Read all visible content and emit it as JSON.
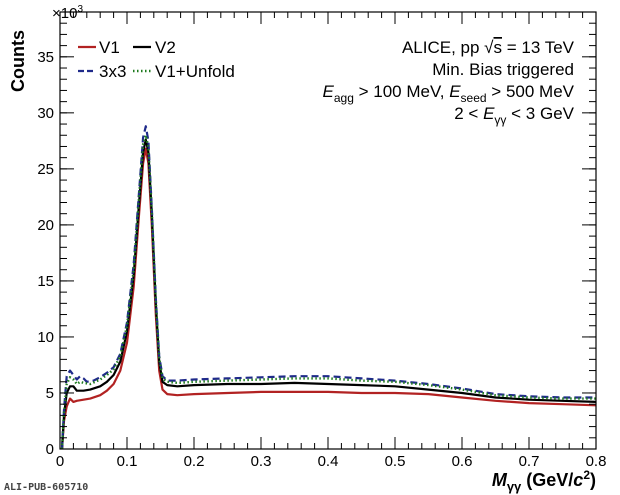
{
  "chart_data": {
    "type": "line",
    "title": "",
    "xlabel": "M_γγ (GeV/c²)",
    "xlabel_parts": {
      "symbol": "M",
      "sub": "γγ",
      "unit_open": " (GeV/",
      "c": "c",
      "power": "2",
      "unit_close": ")"
    },
    "ylabel": "Counts",
    "y_multiplier": "×10",
    "y_multiplier_exp": "3",
    "xlim": [
      0,
      0.8
    ],
    "ylim": [
      0,
      39
    ],
    "xticks": [
      "0",
      "0.1",
      "0.2",
      "0.3",
      "0.4",
      "0.5",
      "0.6",
      "0.7",
      "0.8"
    ],
    "yticks": [
      "0",
      "5",
      "10",
      "15",
      "20",
      "25",
      "30",
      "35"
    ],
    "grid": false,
    "legend_position": "top-left",
    "legend": [
      {
        "label": "V1",
        "style": "solid",
        "color": "#b22222"
      },
      {
        "label": "V2",
        "style": "solid",
        "color": "#000000"
      },
      {
        "label": "3x3",
        "style": "dashed",
        "color": "#1f2a8a"
      },
      {
        "label": "V1+Unfold",
        "style": "dotted",
        "color": "#1e7a1e"
      }
    ],
    "annotations": {
      "line1_prefix": "ALICE, pp  ",
      "line1_sqrt": "√",
      "line1_s": "s",
      "line1_suffix": " = 13 TeV",
      "line2": "Min. Bias triggered",
      "line3_e1": "E",
      "line3_sub1": "agg",
      "line3_mid": " > 100 MeV, ",
      "line3_e2": "E",
      "line3_sub2": "seed",
      "line3_end": " > 500 MeV",
      "line4_pre": "2 < ",
      "line4_e": "E",
      "line4_sub": "γγ",
      "line4_post": " < 3 GeV"
    },
    "series": [
      {
        "name": "V1",
        "color": "#b22222",
        "dash": "",
        "width": 2.2,
        "points": [
          [
            0.003,
            0
          ],
          [
            0.006,
            2.5
          ],
          [
            0.01,
            3.8
          ],
          [
            0.015,
            4.5
          ],
          [
            0.02,
            4.2
          ],
          [
            0.025,
            4.3
          ],
          [
            0.035,
            4.4
          ],
          [
            0.045,
            4.5
          ],
          [
            0.06,
            4.8
          ],
          [
            0.07,
            5.2
          ],
          [
            0.08,
            5.8
          ],
          [
            0.09,
            7.0
          ],
          [
            0.1,
            9.5
          ],
          [
            0.11,
            14.5
          ],
          [
            0.118,
            21
          ],
          [
            0.124,
            25.5
          ],
          [
            0.128,
            26.8
          ],
          [
            0.132,
            25.5
          ],
          [
            0.137,
            20
          ],
          [
            0.143,
            12
          ],
          [
            0.148,
            7.0
          ],
          [
            0.153,
            5.3
          ],
          [
            0.16,
            4.9
          ],
          [
            0.175,
            4.8
          ],
          [
            0.2,
            4.9
          ],
          [
            0.25,
            5.0
          ],
          [
            0.3,
            5.1
          ],
          [
            0.35,
            5.1
          ],
          [
            0.4,
            5.1
          ],
          [
            0.45,
            5.0
          ],
          [
            0.5,
            5.0
          ],
          [
            0.55,
            4.9
          ],
          [
            0.6,
            4.6
          ],
          [
            0.65,
            4.3
          ],
          [
            0.7,
            4.1
          ],
          [
            0.75,
            4.0
          ],
          [
            0.8,
            3.9
          ]
        ]
      },
      {
        "name": "V2",
        "color": "#000000",
        "dash": "",
        "width": 2.2,
        "points": [
          [
            0.003,
            0
          ],
          [
            0.006,
            3.0
          ],
          [
            0.01,
            5.0
          ],
          [
            0.015,
            5.6
          ],
          [
            0.02,
            5.6
          ],
          [
            0.025,
            5.2
          ],
          [
            0.035,
            5.2
          ],
          [
            0.045,
            5.3
          ],
          [
            0.06,
            5.6
          ],
          [
            0.07,
            6.0
          ],
          [
            0.08,
            6.6
          ],
          [
            0.09,
            7.8
          ],
          [
            0.1,
            10.5
          ],
          [
            0.11,
            15.5
          ],
          [
            0.118,
            22
          ],
          [
            0.124,
            26.5
          ],
          [
            0.128,
            27.6
          ],
          [
            0.132,
            26.5
          ],
          [
            0.137,
            21
          ],
          [
            0.143,
            13
          ],
          [
            0.148,
            7.8
          ],
          [
            0.153,
            6.0
          ],
          [
            0.16,
            5.7
          ],
          [
            0.175,
            5.6
          ],
          [
            0.2,
            5.7
          ],
          [
            0.25,
            5.8
          ],
          [
            0.3,
            5.8
          ],
          [
            0.35,
            5.9
          ],
          [
            0.4,
            5.8
          ],
          [
            0.45,
            5.7
          ],
          [
            0.5,
            5.6
          ],
          [
            0.55,
            5.3
          ],
          [
            0.6,
            5.0
          ],
          [
            0.65,
            4.6
          ],
          [
            0.7,
            4.4
          ],
          [
            0.75,
            4.3
          ],
          [
            0.8,
            4.2
          ]
        ]
      },
      {
        "name": "3x3",
        "color": "#1f2a8a",
        "dash": "7,4",
        "width": 2.2,
        "points": [
          [
            0.003,
            0
          ],
          [
            0.006,
            3.5
          ],
          [
            0.01,
            6.5
          ],
          [
            0.015,
            7.0
          ],
          [
            0.02,
            6.6
          ],
          [
            0.025,
            6.2
          ],
          [
            0.03,
            6.5
          ],
          [
            0.035,
            6.3
          ],
          [
            0.04,
            6.0
          ],
          [
            0.05,
            6.1
          ],
          [
            0.06,
            6.4
          ],
          [
            0.07,
            6.8
          ],
          [
            0.08,
            7.3
          ],
          [
            0.09,
            8.5
          ],
          [
            0.1,
            11.3
          ],
          [
            0.11,
            16.5
          ],
          [
            0.118,
            23
          ],
          [
            0.124,
            27.8
          ],
          [
            0.128,
            28.8
          ],
          [
            0.132,
            27.5
          ],
          [
            0.137,
            21.5
          ],
          [
            0.143,
            13.5
          ],
          [
            0.148,
            8.3
          ],
          [
            0.153,
            6.5
          ],
          [
            0.16,
            6.1
          ],
          [
            0.175,
            6.1
          ],
          [
            0.2,
            6.2
          ],
          [
            0.25,
            6.3
          ],
          [
            0.3,
            6.4
          ],
          [
            0.35,
            6.5
          ],
          [
            0.4,
            6.5
          ],
          [
            0.45,
            6.3
          ],
          [
            0.5,
            6.1
          ],
          [
            0.55,
            5.8
          ],
          [
            0.6,
            5.4
          ],
          [
            0.65,
            4.9
          ],
          [
            0.7,
            4.7
          ],
          [
            0.75,
            4.6
          ],
          [
            0.8,
            4.6
          ]
        ]
      },
      {
        "name": "V1+Unfold",
        "color": "#1e7a1e",
        "dash": "1.5,2.5",
        "width": 2.4,
        "points": [
          [
            0.003,
            0
          ],
          [
            0.006,
            3.2
          ],
          [
            0.01,
            5.8
          ],
          [
            0.015,
            6.4
          ],
          [
            0.02,
            6.2
          ],
          [
            0.025,
            5.8
          ],
          [
            0.03,
            6.0
          ],
          [
            0.035,
            5.9
          ],
          [
            0.045,
            5.8
          ],
          [
            0.06,
            6.2
          ],
          [
            0.07,
            6.6
          ],
          [
            0.08,
            7.1
          ],
          [
            0.09,
            8.3
          ],
          [
            0.1,
            11.0
          ],
          [
            0.11,
            16.0
          ],
          [
            0.118,
            22.6
          ],
          [
            0.124,
            27.2
          ],
          [
            0.128,
            28.0
          ],
          [
            0.132,
            26.9
          ],
          [
            0.137,
            21.2
          ],
          [
            0.143,
            13.2
          ],
          [
            0.148,
            8.1
          ],
          [
            0.153,
            6.3
          ],
          [
            0.16,
            6.0
          ],
          [
            0.175,
            5.9
          ],
          [
            0.2,
            6.0
          ],
          [
            0.25,
            6.1
          ],
          [
            0.3,
            6.2
          ],
          [
            0.35,
            6.3
          ],
          [
            0.4,
            6.3
          ],
          [
            0.45,
            6.1
          ],
          [
            0.5,
            6.0
          ],
          [
            0.55,
            5.7
          ],
          [
            0.6,
            5.3
          ],
          [
            0.65,
            4.8
          ],
          [
            0.7,
            4.6
          ],
          [
            0.75,
            4.5
          ],
          [
            0.8,
            4.5
          ]
        ]
      }
    ]
  },
  "footer": {
    "pub_id": "ALI-PUB-605710"
  }
}
